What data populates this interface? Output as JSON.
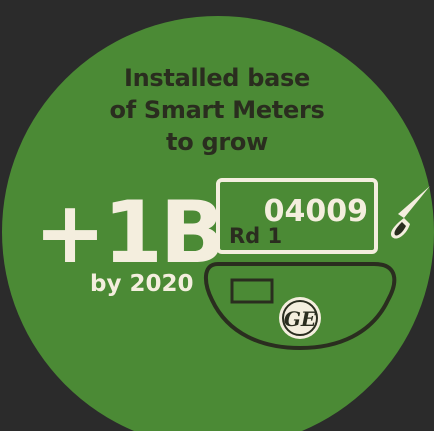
{
  "headline": {
    "line1": "Installed base",
    "line2": "of Smart Meters",
    "line3": "to grow"
  },
  "stat": {
    "value": "+1B",
    "caption": "by 2020"
  },
  "meter": {
    "reading": "04009",
    "register": "Rd 1",
    "logo_text": "GE"
  },
  "colors": {
    "background": "#2b2b2b",
    "circle": "#4b8a35",
    "dark_text": "#2a2d1f",
    "light_text": "#f4eede"
  },
  "icons": {
    "meter": "smart-meter-icon",
    "dial_needle": "dial-needle-icon",
    "logo": "ge-logo-icon"
  }
}
